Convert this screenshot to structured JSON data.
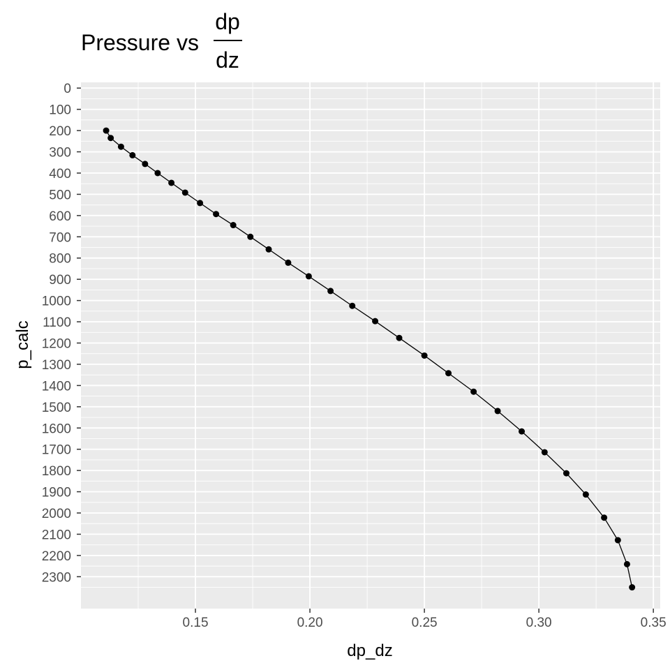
{
  "chart_data": {
    "type": "line",
    "title": {
      "prefix": "Pressure vs",
      "fraction_numerator": "dp",
      "fraction_denominator": "dz"
    },
    "xlabel": "dp_dz",
    "ylabel": "p_calc",
    "xlim": [
      0.1,
      0.353
    ],
    "ylim": [
      -27,
      2450
    ],
    "y_reversed": true,
    "x_ticks": [
      0.15,
      0.2,
      0.25,
      0.3,
      0.35
    ],
    "x_tick_labels": [
      "0.15",
      "0.20",
      "0.25",
      "0.30",
      "0.35"
    ],
    "y_ticks": [
      0,
      100,
      200,
      300,
      400,
      500,
      600,
      700,
      800,
      900,
      1000,
      1100,
      1200,
      1300,
      1400,
      1500,
      1600,
      1700,
      1800,
      1900,
      2000,
      2100,
      2200,
      2300
    ],
    "y_tick_labels": [
      "0",
      "100",
      "200",
      "300",
      "400",
      "500",
      "600",
      "700",
      "800",
      "900",
      "1000",
      "1100",
      "1200",
      "1300",
      "1400",
      "1500",
      "1600",
      "1700",
      "1800",
      "1900",
      "2000",
      "2100",
      "2200",
      "2300"
    ],
    "grid": true,
    "panel_background": "#ebebeb",
    "grid_color": "#ffffff",
    "point_color": "#000000",
    "line_color": "#000000",
    "series": [
      {
        "x": [
          0.111,
          0.113,
          0.1175,
          0.1225,
          0.128,
          0.1335,
          0.1395,
          0.1455,
          0.152,
          0.159,
          0.1665,
          0.174,
          0.182,
          0.1905,
          0.1995,
          0.209,
          0.2185,
          0.2285,
          0.239,
          0.25,
          0.2605,
          0.2715,
          0.282,
          0.2925,
          0.3025,
          0.312,
          0.3205,
          0.3285,
          0.3345,
          0.3385,
          0.3407
        ],
        "y": [
          200,
          235,
          276,
          316,
          357,
          400,
          446,
          492,
          541,
          593,
          645,
          700,
          759,
          822,
          886,
          955,
          1025,
          1097,
          1176,
          1259,
          1342,
          1429,
          1520,
          1616,
          1714,
          1813,
          1913,
          2022,
          2128,
          2241,
          2350
        ]
      }
    ]
  }
}
